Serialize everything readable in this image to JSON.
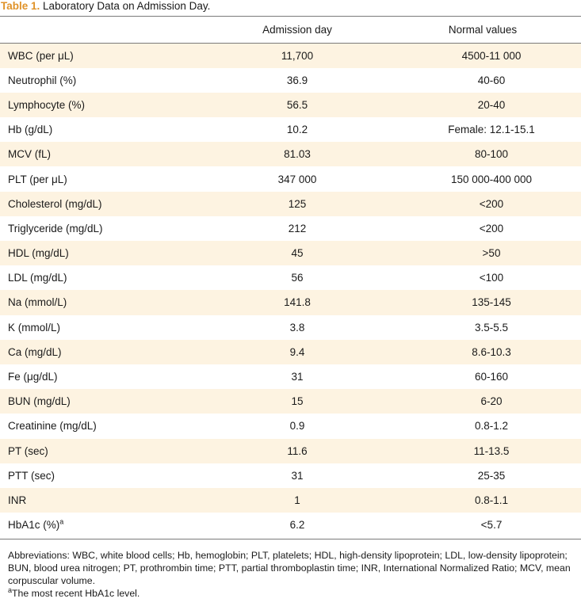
{
  "caption": {
    "label": "Table 1.",
    "text": "Laboratory Data on Admission Day."
  },
  "headers": {
    "parameter": "",
    "admission": "Admission day",
    "normal": "Normal values"
  },
  "rows": [
    {
      "name": "WBC (per μL)",
      "admission": "11,700",
      "normal": "4500-11 000"
    },
    {
      "name": "Neutrophil (%)",
      "admission": "36.9",
      "normal": "40-60"
    },
    {
      "name": "Lymphocyte (%)",
      "admission": "56.5",
      "normal": "20-40"
    },
    {
      "name": "Hb (g/dL)",
      "admission": "10.2",
      "normal": "Female: 12.1-15.1"
    },
    {
      "name": "MCV (fL)",
      "admission": "81.03",
      "normal": "80-100"
    },
    {
      "name": "PLT (per μL)",
      "admission": "347 000",
      "normal": "150 000-400 000"
    },
    {
      "name": "Cholesterol (mg/dL)",
      "admission": "125",
      "normal": "<200"
    },
    {
      "name": "Triglyceride (mg/dL)",
      "admission": "212",
      "normal": "<200"
    },
    {
      "name": "HDL (mg/dL)",
      "admission": "45",
      "normal": ">50"
    },
    {
      "name": "LDL (mg/dL)",
      "admission": "56",
      "normal": "<100"
    },
    {
      "name": "Na (mmol/L)",
      "admission": "141.8",
      "normal": "135-145"
    },
    {
      "name": "K (mmol/L)",
      "admission": "3.8",
      "normal": "3.5-5.5"
    },
    {
      "name": "Ca (mg/dL)",
      "admission": "9.4",
      "normal": "8.6-10.3"
    },
    {
      "name": "Fe (μg/dL)",
      "admission": "31",
      "normal": "60-160"
    },
    {
      "name": "BUN (mg/dL)",
      "admission": "15",
      "normal": "6-20"
    },
    {
      "name": "Creatinine (mg/dL)",
      "admission": "0.9",
      "normal": "0.8-1.2"
    },
    {
      "name": "PT (sec)",
      "admission": "11.6",
      "normal": "11-13.5"
    },
    {
      "name": "PTT (sec)",
      "admission": "31",
      "normal": "25-35"
    },
    {
      "name": "INR",
      "admission": "1",
      "normal": "0.8-1.1"
    },
    {
      "name": "HbA1c (%)",
      "footnote": "a",
      "admission": "6.2",
      "normal": "<5.7"
    }
  ],
  "footer": {
    "abbreviations": "Abbreviations: WBC, white blood cells; Hb, hemoglobin; PLT, platelets; HDL, high-density lipoprotein; LDL, low-density lipoprotein; BUN, blood urea nitrogen; PT, prothrombin time; PTT, partial thromboplastin time; INR, International Normalized Ratio; MCV, mean corpuscular volume.",
    "note_marker": "a",
    "note_text": "The most recent HbA1c level."
  },
  "colors": {
    "caption_label": "#e0932a",
    "row_stripe": "#fdf3e1",
    "rule": "#7a7a7a"
  }
}
